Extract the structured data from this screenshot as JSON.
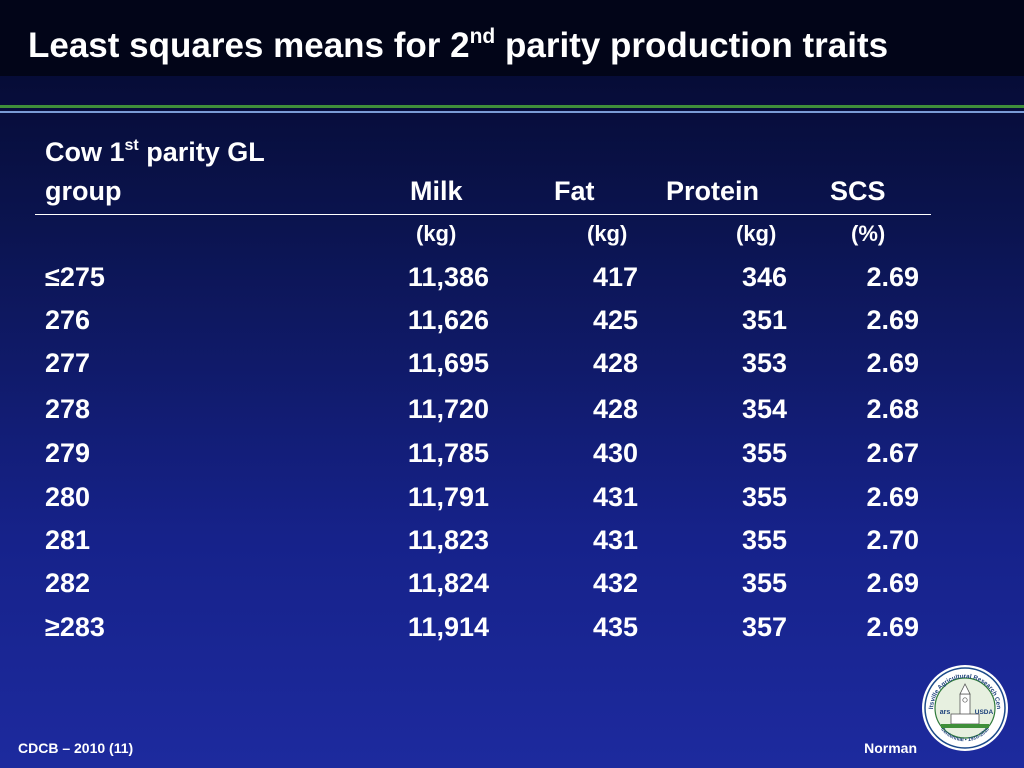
{
  "slide": {
    "title_main": "Least squares means for 2",
    "title_sup": "nd",
    "title_rest": " parity production traits"
  },
  "table": {
    "group_header_line1_a": "Cow 1",
    "group_header_line1_sup": "st",
    "group_header_line1_b": " parity GL",
    "group_header_line2": "group",
    "columns": [
      {
        "label": "Milk",
        "unit": "(kg)"
      },
      {
        "label": "Fat",
        "unit": "(kg)"
      },
      {
        "label": "Protein",
        "unit": "(kg)"
      },
      {
        "label": "SCS",
        "unit": "(%)"
      }
    ],
    "rows": [
      {
        "group": "≤275",
        "milk": "11,386",
        "fat": "417",
        "protein": "346",
        "scs": "2.69"
      },
      {
        "group": "276",
        "milk": "11,626",
        "fat": "425",
        "protein": "351",
        "scs": "2.69"
      },
      {
        "group": "277",
        "milk": "11,695",
        "fat": "428",
        "protein": "353",
        "scs": "2.69"
      },
      {
        "group": "278",
        "milk": "11,720",
        "fat": "428",
        "protein": "354",
        "scs": "2.68"
      },
      {
        "group": "279",
        "milk": "11,785",
        "fat": "430",
        "protein": "355",
        "scs": "2.67"
      },
      {
        "group": "280",
        "milk": "11,791",
        "fat": "431",
        "protein": "355",
        "scs": "2.69"
      },
      {
        "group": "281",
        "milk": "11,823",
        "fat": "431",
        "protein": "355",
        "scs": "2.70"
      },
      {
        "group": "282",
        "milk": "11,824",
        "fat": "432",
        "protein": "355",
        "scs": "2.69"
      },
      {
        "group": "≥283",
        "milk": "11,914",
        "fat": "435",
        "protein": "357",
        "scs": "2.69"
      }
    ]
  },
  "footer": {
    "left": "CDCB – 2010 (11)",
    "right": "Norman"
  },
  "seal": {
    "text_top": "Beltsville Agricultural Research Center",
    "text_bottom": "Centennial • 1910-2010",
    "logo_left": "ars",
    "logo_right": "USDA"
  },
  "colors": {
    "title_bar": "#020518",
    "accent_green": "#3f8f3a",
    "accent_blue": "#7a9bd6"
  }
}
